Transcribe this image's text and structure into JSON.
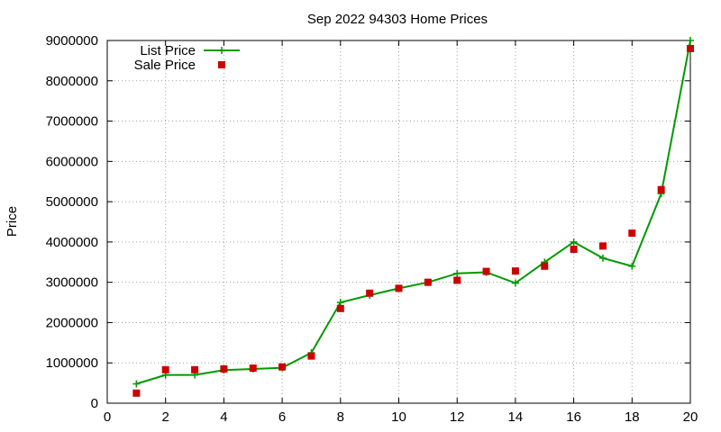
{
  "chart_data": {
    "type": "line",
    "title": "Sep 2022 94303 Home Prices",
    "xlabel": "",
    "ylabel": "Price",
    "xlim": [
      0,
      20
    ],
    "ylim": [
      0,
      9000000
    ],
    "x_ticks": [
      0,
      2,
      4,
      6,
      8,
      10,
      12,
      14,
      16,
      18,
      20
    ],
    "x_tick_labels": [
      "0",
      "2",
      "4",
      "6",
      "8",
      "10",
      "12",
      "14",
      "16",
      "18",
      "20"
    ],
    "y_ticks": [
      0,
      1000000,
      2000000,
      3000000,
      4000000,
      5000000,
      6000000,
      7000000,
      8000000,
      9000000
    ],
    "y_tick_labels": [
      "0",
      "1000000",
      "2000000",
      "3000000",
      "4000000",
      "5000000",
      "6000000",
      "7000000",
      "8000000",
      "9000000"
    ],
    "grid": true,
    "legend_position": "top-left",
    "x": [
      1,
      2,
      3,
      4,
      5,
      6,
      7,
      8,
      9,
      10,
      11,
      12,
      13,
      14,
      15,
      16,
      17,
      18,
      19,
      20
    ],
    "series": [
      {
        "name": "List Price",
        "style": "linespoints",
        "color": "#009900",
        "values": [
          480000,
          700000,
          700000,
          820000,
          850000,
          880000,
          1250000,
          2500000,
          2680000,
          2850000,
          3000000,
          3220000,
          3250000,
          2980000,
          3500000,
          4000000,
          3600000,
          3400000,
          5200000,
          9000000
        ]
      },
      {
        "name": "Sale Price",
        "style": "points",
        "color": "#cc0000",
        "values": [
          250000,
          830000,
          830000,
          850000,
          870000,
          900000,
          1170000,
          2350000,
          2730000,
          2850000,
          3000000,
          3050000,
          3270000,
          3280000,
          3400000,
          3820000,
          3900000,
          4220000,
          5300000,
          8800000
        ]
      }
    ]
  }
}
